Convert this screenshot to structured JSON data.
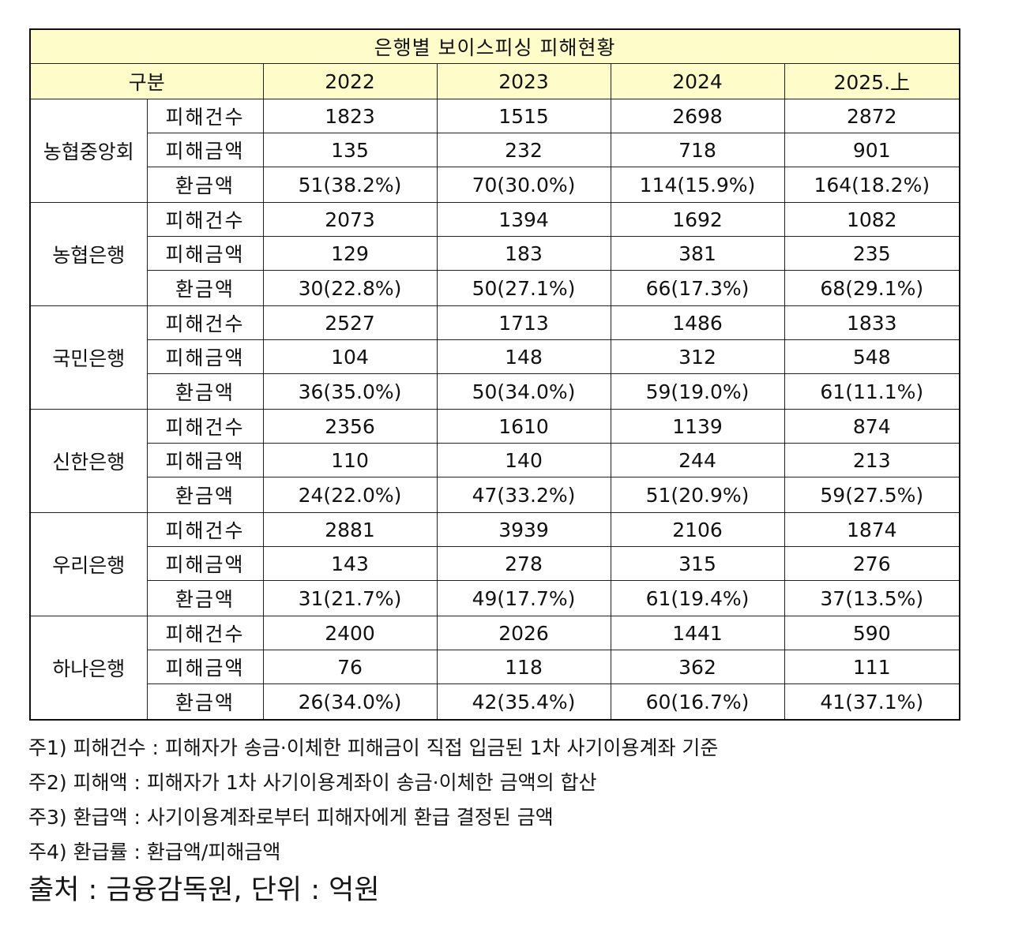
{
  "table": {
    "title": "은행별 보이스피싱 피해현황",
    "header": {
      "category": "구분",
      "years": [
        "2022",
        "2023",
        "2024",
        "2025.上"
      ]
    },
    "banks": [
      {
        "name": "농협중앙회",
        "rows": [
          {
            "metric": "피해건수",
            "values": [
              "1823",
              "1515",
              "2698",
              "2872"
            ]
          },
          {
            "metric": "피해금액",
            "values": [
              "135",
              "232",
              "718",
              "901"
            ]
          },
          {
            "metric": "환금액",
            "values": [
              "51(38.2%)",
              "70(30.0%)",
              "114(15.9%)",
              "164(18.2%)"
            ]
          }
        ]
      },
      {
        "name": "농협은행",
        "rows": [
          {
            "metric": "피해건수",
            "values": [
              "2073",
              "1394",
              "1692",
              "1082"
            ]
          },
          {
            "metric": "피해금액",
            "values": [
              "129",
              "183",
              "381",
              "235"
            ]
          },
          {
            "metric": "환금액",
            "values": [
              "30(22.8%)",
              "50(27.1%)",
              "66(17.3%)",
              "68(29.1%)"
            ]
          }
        ]
      },
      {
        "name": "국민은행",
        "rows": [
          {
            "metric": "피해건수",
            "values": [
              "2527",
              "1713",
              "1486",
              "1833"
            ]
          },
          {
            "metric": "피해금액",
            "values": [
              "104",
              "148",
              "312",
              "548"
            ]
          },
          {
            "metric": "환금액",
            "values": [
              "36(35.0%)",
              "50(34.0%)",
              "59(19.0%)",
              "61(11.1%)"
            ]
          }
        ]
      },
      {
        "name": "신한은행",
        "rows": [
          {
            "metric": "피해건수",
            "values": [
              "2356",
              "1610",
              "1139",
              "874"
            ]
          },
          {
            "metric": "피해금액",
            "values": [
              "110",
              "140",
              "244",
              "213"
            ]
          },
          {
            "metric": "환금액",
            "values": [
              "24(22.0%)",
              "47(33.2%)",
              "51(20.9%)",
              "59(27.5%)"
            ]
          }
        ]
      },
      {
        "name": "우리은행",
        "rows": [
          {
            "metric": "피해건수",
            "values": [
              "2881",
              "3939",
              "2106",
              "1874"
            ]
          },
          {
            "metric": "피해금액",
            "values": [
              "143",
              "278",
              "315",
              "276"
            ]
          },
          {
            "metric": "환금액",
            "values": [
              "31(21.7%)",
              "49(17.7%)",
              "61(19.4%)",
              "37(13.5%)"
            ]
          }
        ]
      },
      {
        "name": "하나은행",
        "rows": [
          {
            "metric": "피해건수",
            "values": [
              "2400",
              "2026",
              "1441",
              "590"
            ]
          },
          {
            "metric": "피해금액",
            "values": [
              "76",
              "118",
              "362",
              "111"
            ]
          },
          {
            "metric": "환금액",
            "values": [
              "26(34.0%)",
              "42(35.4%)",
              "60(16.7%)",
              "41(37.1%)"
            ]
          }
        ]
      }
    ]
  },
  "notes": [
    "주1) 피해건수 : 피해자가 송금·이체한 피해금이 직접 입금된 1차 사기이용계좌 기준",
    "주2) 피해액 : 피해자가 1차 사기이용계좌이 송금·이체한 금액의 합산",
    "주3) 환급액 : 사기이용계좌로부터 피해자에게 환급 결정된 금액",
    "주4) 환급률 : 환급액/피해금액"
  ],
  "source": "출처 : 금융감독원, 단위 : 억원",
  "colors": {
    "header_bg": "#fefcc8",
    "border": "#222222",
    "text": "#111111"
  }
}
